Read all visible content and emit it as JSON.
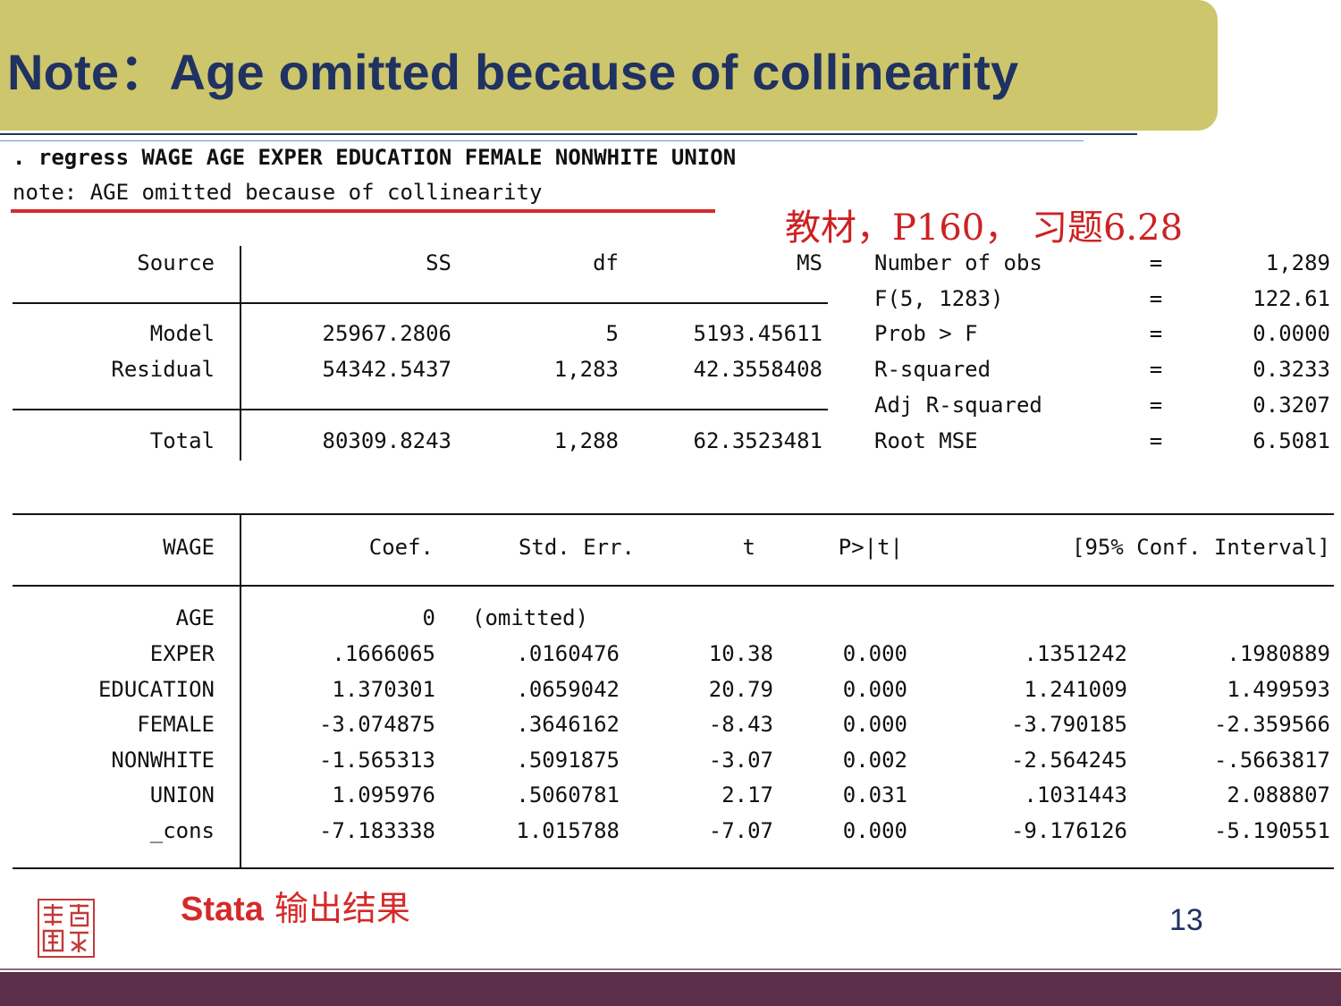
{
  "slide": {
    "title": "Note：Age omitted because of collinearity",
    "command": ". regress WAGE AGE EXPER EDUCATION FEMALE NONWHITE UNION",
    "note": "note: AGE omitted because of collinearity",
    "reference": "教材，P160， 习题6.28",
    "footer_label_bold": "Stata",
    "footer_label_rest": " 输出结果",
    "page_number": "13",
    "accent_color": "#cdc66c",
    "title_color": "#1f3262",
    "highlight_color": "#d42a2a"
  },
  "anova": {
    "headers": [
      "Source",
      "SS",
      "df",
      "MS"
    ],
    "rows": [
      [
        "Model",
        "25967.2806",
        "5",
        "5193.45611"
      ],
      [
        "Residual",
        "54342.5437",
        "1,283",
        "42.3558408"
      ],
      [
        "Total",
        "80309.8243",
        "1,288",
        "62.3523481"
      ]
    ]
  },
  "stats": [
    {
      "label": "Number of obs",
      "eq": "=",
      "value": "1,289"
    },
    {
      "label": "F(5, 1283)",
      "eq": "=",
      "value": "122.61"
    },
    {
      "label": "Prob > F",
      "eq": "=",
      "value": "0.0000"
    },
    {
      "label": "R-squared",
      "eq": "=",
      "value": "0.3233"
    },
    {
      "label": "Adj R-squared",
      "eq": "=",
      "value": "0.3207"
    },
    {
      "label": "Root MSE",
      "eq": "=",
      "value": "6.5081"
    }
  ],
  "coef": {
    "headers": [
      "WAGE",
      "Coef.",
      "Std. Err.",
      "t",
      "P>|t|",
      "[95% Conf. Interval]"
    ],
    "rows": [
      [
        "AGE",
        "0",
        "(omitted)",
        "",
        "",
        "",
        ""
      ],
      [
        "EXPER",
        ".1666065",
        ".0160476",
        "10.38",
        "0.000",
        ".1351242",
        ".1980889"
      ],
      [
        "EDUCATION",
        "1.370301",
        ".0659042",
        "20.79",
        "0.000",
        "1.241009",
        "1.499593"
      ],
      [
        "FEMALE",
        "-3.074875",
        ".3646162",
        "-8.43",
        "0.000",
        "-3.790185",
        "-2.359566"
      ],
      [
        "NONWHITE",
        "-1.565313",
        ".5091875",
        "-3.07",
        "0.002",
        "-2.564245",
        "-.5663817"
      ],
      [
        "UNION",
        "1.095976",
        ".5060781",
        "2.17",
        "0.031",
        ".1031443",
        "2.088807"
      ],
      [
        "_cons",
        "-7.183338",
        "1.015788",
        "-7.07",
        "0.000",
        "-9.176126",
        "-5.190551"
      ]
    ]
  }
}
